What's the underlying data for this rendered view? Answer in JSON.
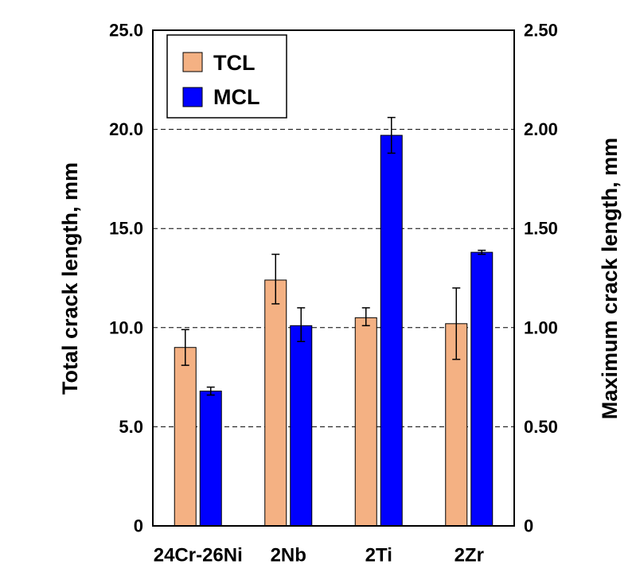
{
  "chart_data": {
    "type": "bar",
    "categories": [
      "24Cr-26Ni",
      "2Nb",
      "2Ti",
      "2Zr"
    ],
    "y_left": {
      "label": "Total crack length, mm",
      "lim": [
        0,
        25
      ],
      "ticks": [
        "0",
        "5.0",
        "10.0",
        "15.0",
        "20.0",
        "25.0"
      ]
    },
    "y_right": {
      "label": "Maximum crack length, mm",
      "lim": [
        0,
        2.5
      ],
      "ticks": [
        "0",
        "0.50",
        "1.00",
        "1.50",
        "2.00",
        "2.50"
      ]
    },
    "grid": "horizontal-dashed",
    "legend": "top-left",
    "series": [
      {
        "name": "TCL",
        "axis": "left",
        "color": "#F4B183",
        "values": [
          9.0,
          12.4,
          10.5,
          10.2
        ],
        "err_low": [
          8.1,
          11.2,
          10.1,
          8.4
        ],
        "err_high": [
          9.9,
          13.7,
          11.0,
          12.0
        ]
      },
      {
        "name": "MCL",
        "axis": "right",
        "color": "#0000FF",
        "values": [
          0.68,
          1.01,
          1.97,
          1.38
        ],
        "err_low": [
          0.66,
          0.93,
          1.88,
          1.37
        ],
        "err_high": [
          0.7,
          1.1,
          2.06,
          1.39
        ]
      }
    ]
  }
}
